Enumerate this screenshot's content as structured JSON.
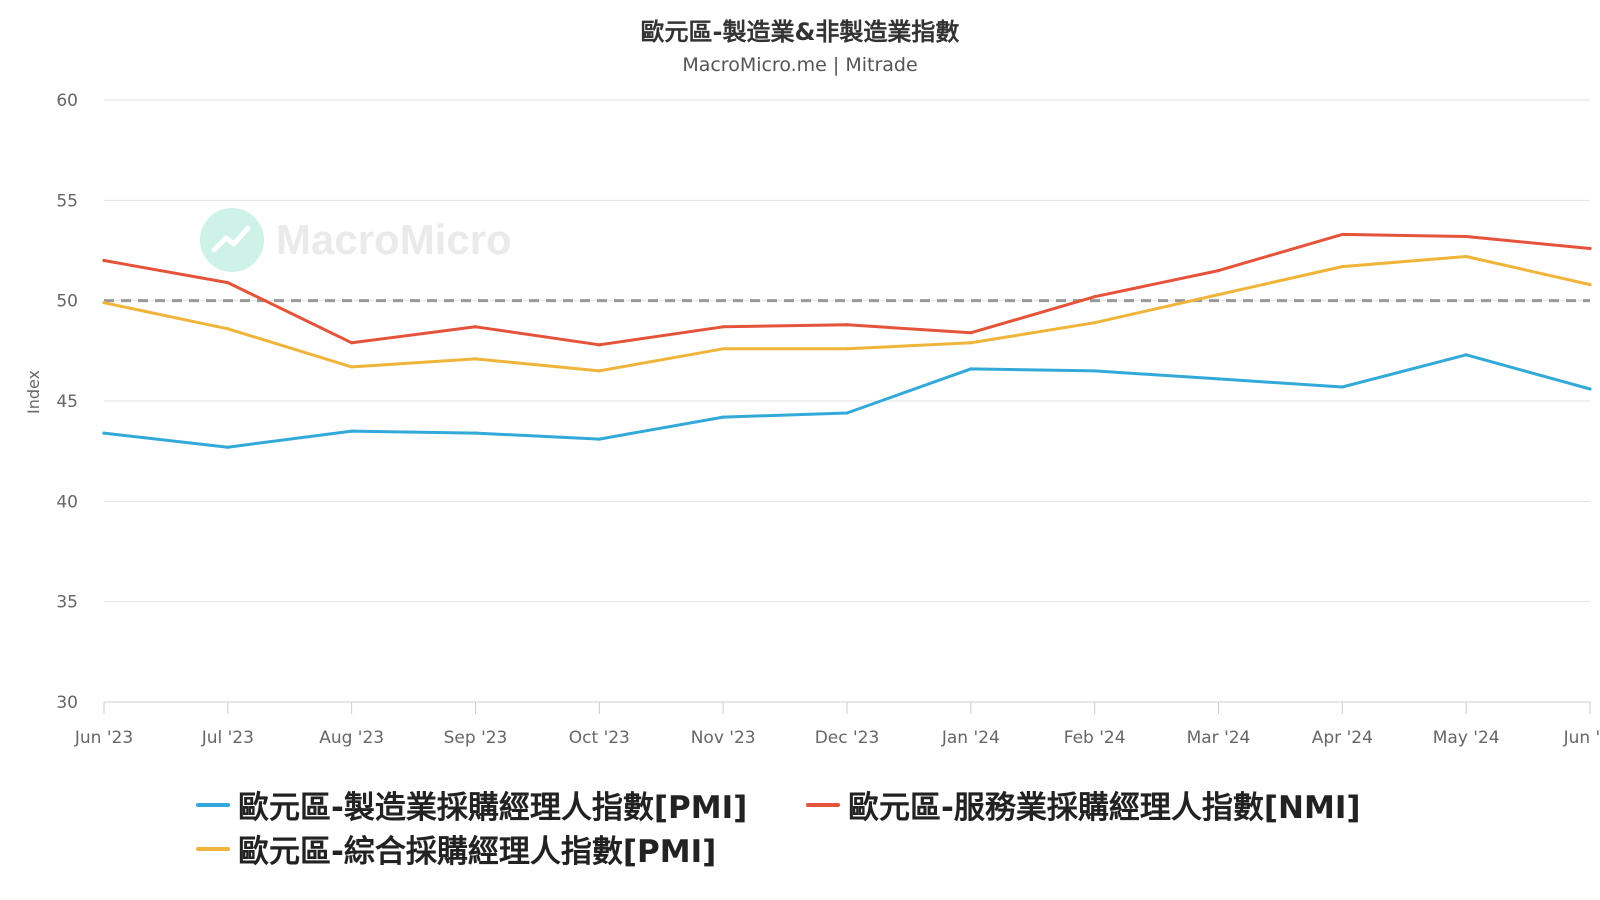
{
  "title": "歐元區-製造業&非製造業指數",
  "subtitle": "MacroMicro.me | Mitrade",
  "watermark": {
    "text": "MacroMicro",
    "icon": "chart-line-icon"
  },
  "chart_data": {
    "type": "line",
    "title": "歐元區-製造業&非製造業指數",
    "subtitle": "MacroMicro.me | Mitrade",
    "ylabel": "Index",
    "xlabel": "",
    "ylim": [
      30,
      60
    ],
    "yticks": [
      30,
      35,
      40,
      45,
      50,
      55,
      60
    ],
    "grid": true,
    "legend_position": "bottom",
    "reference_line": {
      "value": 50,
      "style": "dashed",
      "color": "#999999"
    },
    "categories": [
      "Jun '23",
      "Jul '23",
      "Aug '23",
      "Sep '23",
      "Oct '23",
      "Nov '23",
      "Dec '23",
      "Jan '24",
      "Feb '24",
      "Mar '24",
      "Apr '24",
      "May '24",
      "Jun '..."
    ],
    "series": [
      {
        "name": "歐元區-製造業採購經理人指數[PMI]",
        "color": "#33a9d9",
        "values": [
          43.4,
          42.7,
          43.5,
          43.4,
          43.1,
          44.2,
          44.4,
          46.6,
          46.5,
          46.1,
          45.7,
          47.3,
          45.6
        ]
      },
      {
        "name": "歐元區-服務業採購經理人指數[NMI]",
        "color": "#e5533a",
        "values": [
          52.0,
          50.9,
          47.9,
          48.7,
          47.8,
          48.7,
          48.8,
          48.4,
          50.2,
          51.5,
          53.3,
          53.2,
          52.6
        ]
      },
      {
        "name": "歐元區-綜合採購經理人指數[PMI]",
        "color": "#f0b43a",
        "values": [
          49.9,
          48.6,
          46.7,
          47.1,
          46.5,
          47.6,
          47.6,
          47.9,
          48.9,
          50.3,
          51.7,
          52.2,
          50.8
        ]
      }
    ]
  }
}
